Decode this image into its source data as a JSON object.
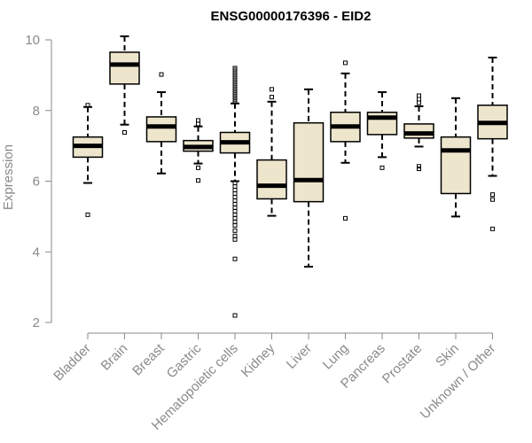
{
  "chart_data": {
    "type": "boxplot",
    "title": "ENSG00000176396 - EID2",
    "xlabel": "",
    "ylabel": "Expression",
    "ylim": [
      2,
      10
    ],
    "yticks": [
      2,
      4,
      6,
      8,
      10
    ],
    "box_fill": "#ede6cc",
    "line_color": "#000000",
    "axis_color": "#8a8a8a",
    "categories": [
      "Bladder",
      "Brain",
      "Breast",
      "Gastric",
      "Hematopoietic cells",
      "Kidney",
      "Liver",
      "Lung",
      "Pancreas",
      "Prostate",
      "Skin",
      "Unknown / Other"
    ],
    "boxes": [
      {
        "name": "Bladder",
        "whisker_low": 5.95,
        "q1": 6.68,
        "median": 7.0,
        "q3": 7.25,
        "whisker_high": 8.1,
        "outliers": [
          5.05,
          8.15
        ]
      },
      {
        "name": "Brain",
        "whisker_low": 7.6,
        "q1": 8.75,
        "median": 9.3,
        "q3": 9.65,
        "whisker_high": 10.1,
        "outliers": [
          7.38
        ]
      },
      {
        "name": "Breast",
        "whisker_low": 6.22,
        "q1": 7.12,
        "median": 7.55,
        "q3": 7.82,
        "whisker_high": 8.52,
        "outliers": [
          9.02
        ]
      },
      {
        "name": "Gastric",
        "whisker_low": 6.5,
        "q1": 6.85,
        "median": 6.97,
        "q3": 7.15,
        "whisker_high": 7.55,
        "outliers": [
          7.72,
          7.62,
          6.38,
          6.02
        ]
      },
      {
        "name": "Hematopoietic cells",
        "whisker_low": 6.0,
        "q1": 6.8,
        "median": 7.1,
        "q3": 7.38,
        "whisker_high": 8.2,
        "outliers": [
          9.2,
          9.15,
          9.1,
          9.05,
          9.0,
          8.95,
          8.9,
          8.85,
          8.8,
          8.75,
          8.7,
          8.65,
          8.6,
          8.55,
          8.5,
          8.45,
          8.4,
          8.35,
          8.3,
          8.25,
          5.95,
          5.85,
          5.75,
          5.65,
          5.55,
          5.45,
          5.35,
          5.25,
          5.15,
          5.05,
          4.95,
          4.85,
          4.75,
          4.6,
          4.45,
          4.35,
          3.8,
          2.2
        ]
      },
      {
        "name": "Kidney",
        "whisker_low": 5.02,
        "q1": 5.5,
        "median": 5.87,
        "q3": 6.6,
        "whisker_high": 8.25,
        "outliers": [
          8.6,
          8.38
        ]
      },
      {
        "name": "Liver",
        "whisker_low": 3.58,
        "q1": 5.42,
        "median": 6.03,
        "q3": 7.65,
        "whisker_high": 8.6,
        "outliers": []
      },
      {
        "name": "Lung",
        "whisker_low": 6.52,
        "q1": 7.12,
        "median": 7.55,
        "q3": 7.95,
        "whisker_high": 9.05,
        "outliers": [
          9.35,
          4.95
        ]
      },
      {
        "name": "Pancreas",
        "whisker_low": 6.68,
        "q1": 7.32,
        "median": 7.8,
        "q3": 7.95,
        "whisker_high": 8.52,
        "outliers": [
          6.38
        ]
      },
      {
        "name": "Prostate",
        "whisker_low": 6.98,
        "q1": 7.22,
        "median": 7.35,
        "q3": 7.62,
        "whisker_high": 8.12,
        "outliers": [
          8.42,
          8.32,
          8.22,
          6.42,
          6.35
        ]
      },
      {
        "name": "Skin",
        "whisker_low": 5.0,
        "q1": 5.65,
        "median": 6.87,
        "q3": 7.25,
        "whisker_high": 8.35,
        "outliers": []
      },
      {
        "name": "Unknown / Other",
        "whisker_low": 6.15,
        "q1": 7.2,
        "median": 7.65,
        "q3": 8.15,
        "whisker_high": 9.5,
        "outliers": [
          5.62,
          5.48,
          4.65
        ]
      }
    ]
  }
}
